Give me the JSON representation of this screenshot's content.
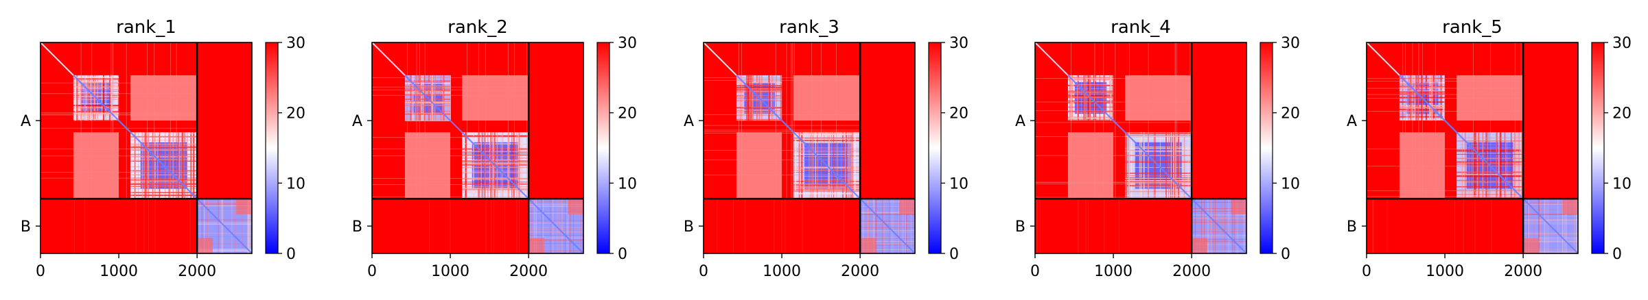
{
  "chart_data": {
    "type": "heatmap",
    "colormap": {
      "name": "bwr",
      "low": "#0000ff",
      "mid": "#ffffff",
      "high": "#ff0000"
    },
    "colorbar": {
      "vmin": 0,
      "vmax": 30,
      "ticks": [
        "0",
        "10",
        "20",
        "30"
      ]
    },
    "matrix_size": 2700,
    "chain_boundary": 2000,
    "xlim": [
      0,
      2700
    ],
    "x_ticks": [
      {
        "value": 0,
        "label": "0"
      },
      {
        "value": 1000,
        "label": "1000"
      },
      {
        "value": 2000,
        "label": "2000"
      }
    ],
    "y_ticks": [
      {
        "value": 1000,
        "label": "A"
      },
      {
        "value": 2350,
        "label": "B"
      }
    ],
    "panels": [
      {
        "title": "rank_1"
      },
      {
        "title": "rank_2"
      },
      {
        "title": "rank_3"
      },
      {
        "title": "rank_4"
      },
      {
        "title": "rank_5"
      }
    ]
  }
}
